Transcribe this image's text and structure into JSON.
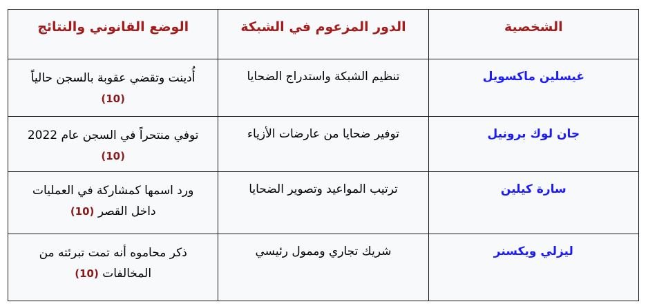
{
  "table": {
    "headers": {
      "character": "الشخصية",
      "role": "الدور المزعوم في الشبكة",
      "status": "الوضع القانوني والنتائج"
    },
    "rows": [
      {
        "name": "غيسلين ماكسويل",
        "role": "تنظيم الشبكة واستدراج الضحايا",
        "status_line1": "أُدينت وتقضي عقوبة بالسجن حالياً",
        "status_line2": "",
        "reference": "(10)"
      },
      {
        "name": "جان لوك برونيل",
        "role": "توفير ضحايا من عارضات الأزياء",
        "status_line1": "توفي منتحراً في السجن عام 2022",
        "status_line2": "",
        "reference": "(10)"
      },
      {
        "name": "سارة كيلين",
        "role": "ترتيب المواعيد وتصوير الضحايا",
        "status_line1": "ورد اسمها كمشاركة في العمليات",
        "status_line2": "داخل القصر",
        "reference": "(10)"
      },
      {
        "name": "ليزلي ويكسنر",
        "role": "شريك تجاري وممول رئيسي",
        "status_line1": "ذكر محاموه أنه تمت تبرئته من",
        "status_line2": "المخالفات",
        "reference": "(10)"
      }
    ]
  },
  "colors": {
    "header_text": "#a21c1c",
    "name_text": "#1a1aff",
    "reference_text": "#8b1a1a",
    "cell_background": "#f8f9fa",
    "border": "#1a1a1a",
    "page_background": "#ffffff"
  }
}
